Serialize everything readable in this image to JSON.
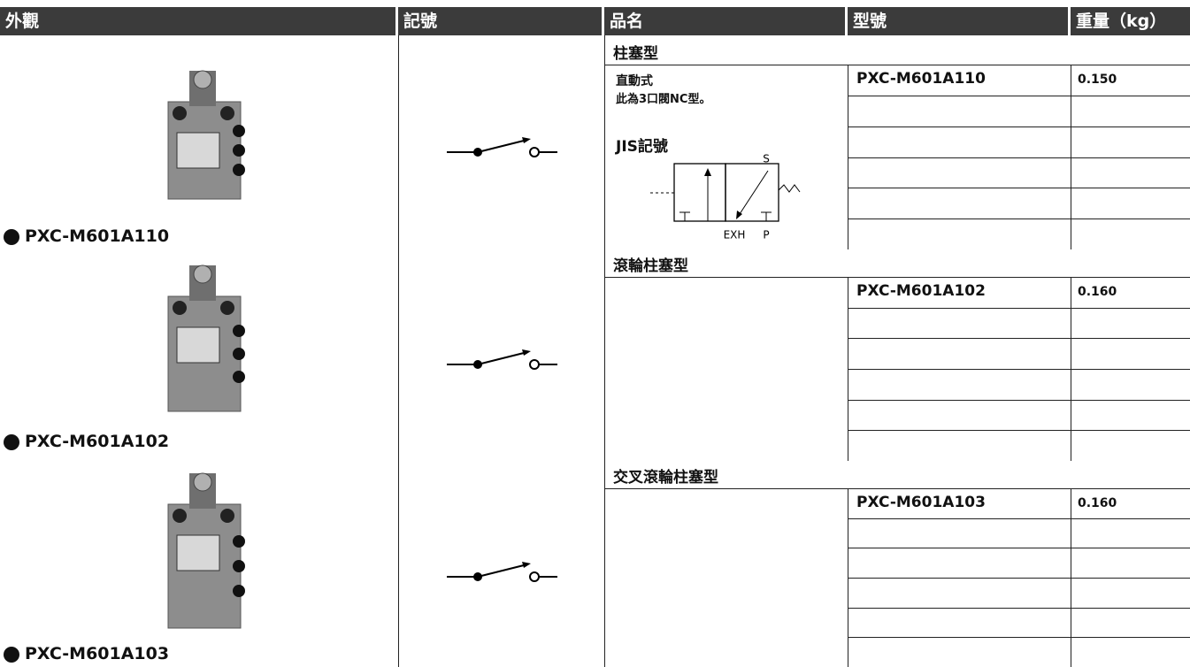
{
  "header": {
    "columns": [
      "外觀",
      "記號",
      "品名",
      "型號",
      "重量（kg）"
    ]
  },
  "sections": [
    {
      "name": "柱塞型",
      "appearance_label": "PXC-M601A110",
      "model": "PXC-M601A110",
      "weight": "0.150",
      "notes": {
        "type": "直動式",
        "description": "此為3口閥NC型。",
        "jis_title": "JIS記號",
        "diagram_labels": [
          "S",
          "EXH",
          "P"
        ]
      }
    },
    {
      "name": "滾輪柱塞型",
      "appearance_label": "PXC-M601A102",
      "model": "PXC-M601A102",
      "weight": "0.160"
    },
    {
      "name": "交叉滾輪柱塞型",
      "appearance_label": "PXC-M601A103",
      "model": "PXC-M601A103",
      "weight": "0.160"
    }
  ]
}
